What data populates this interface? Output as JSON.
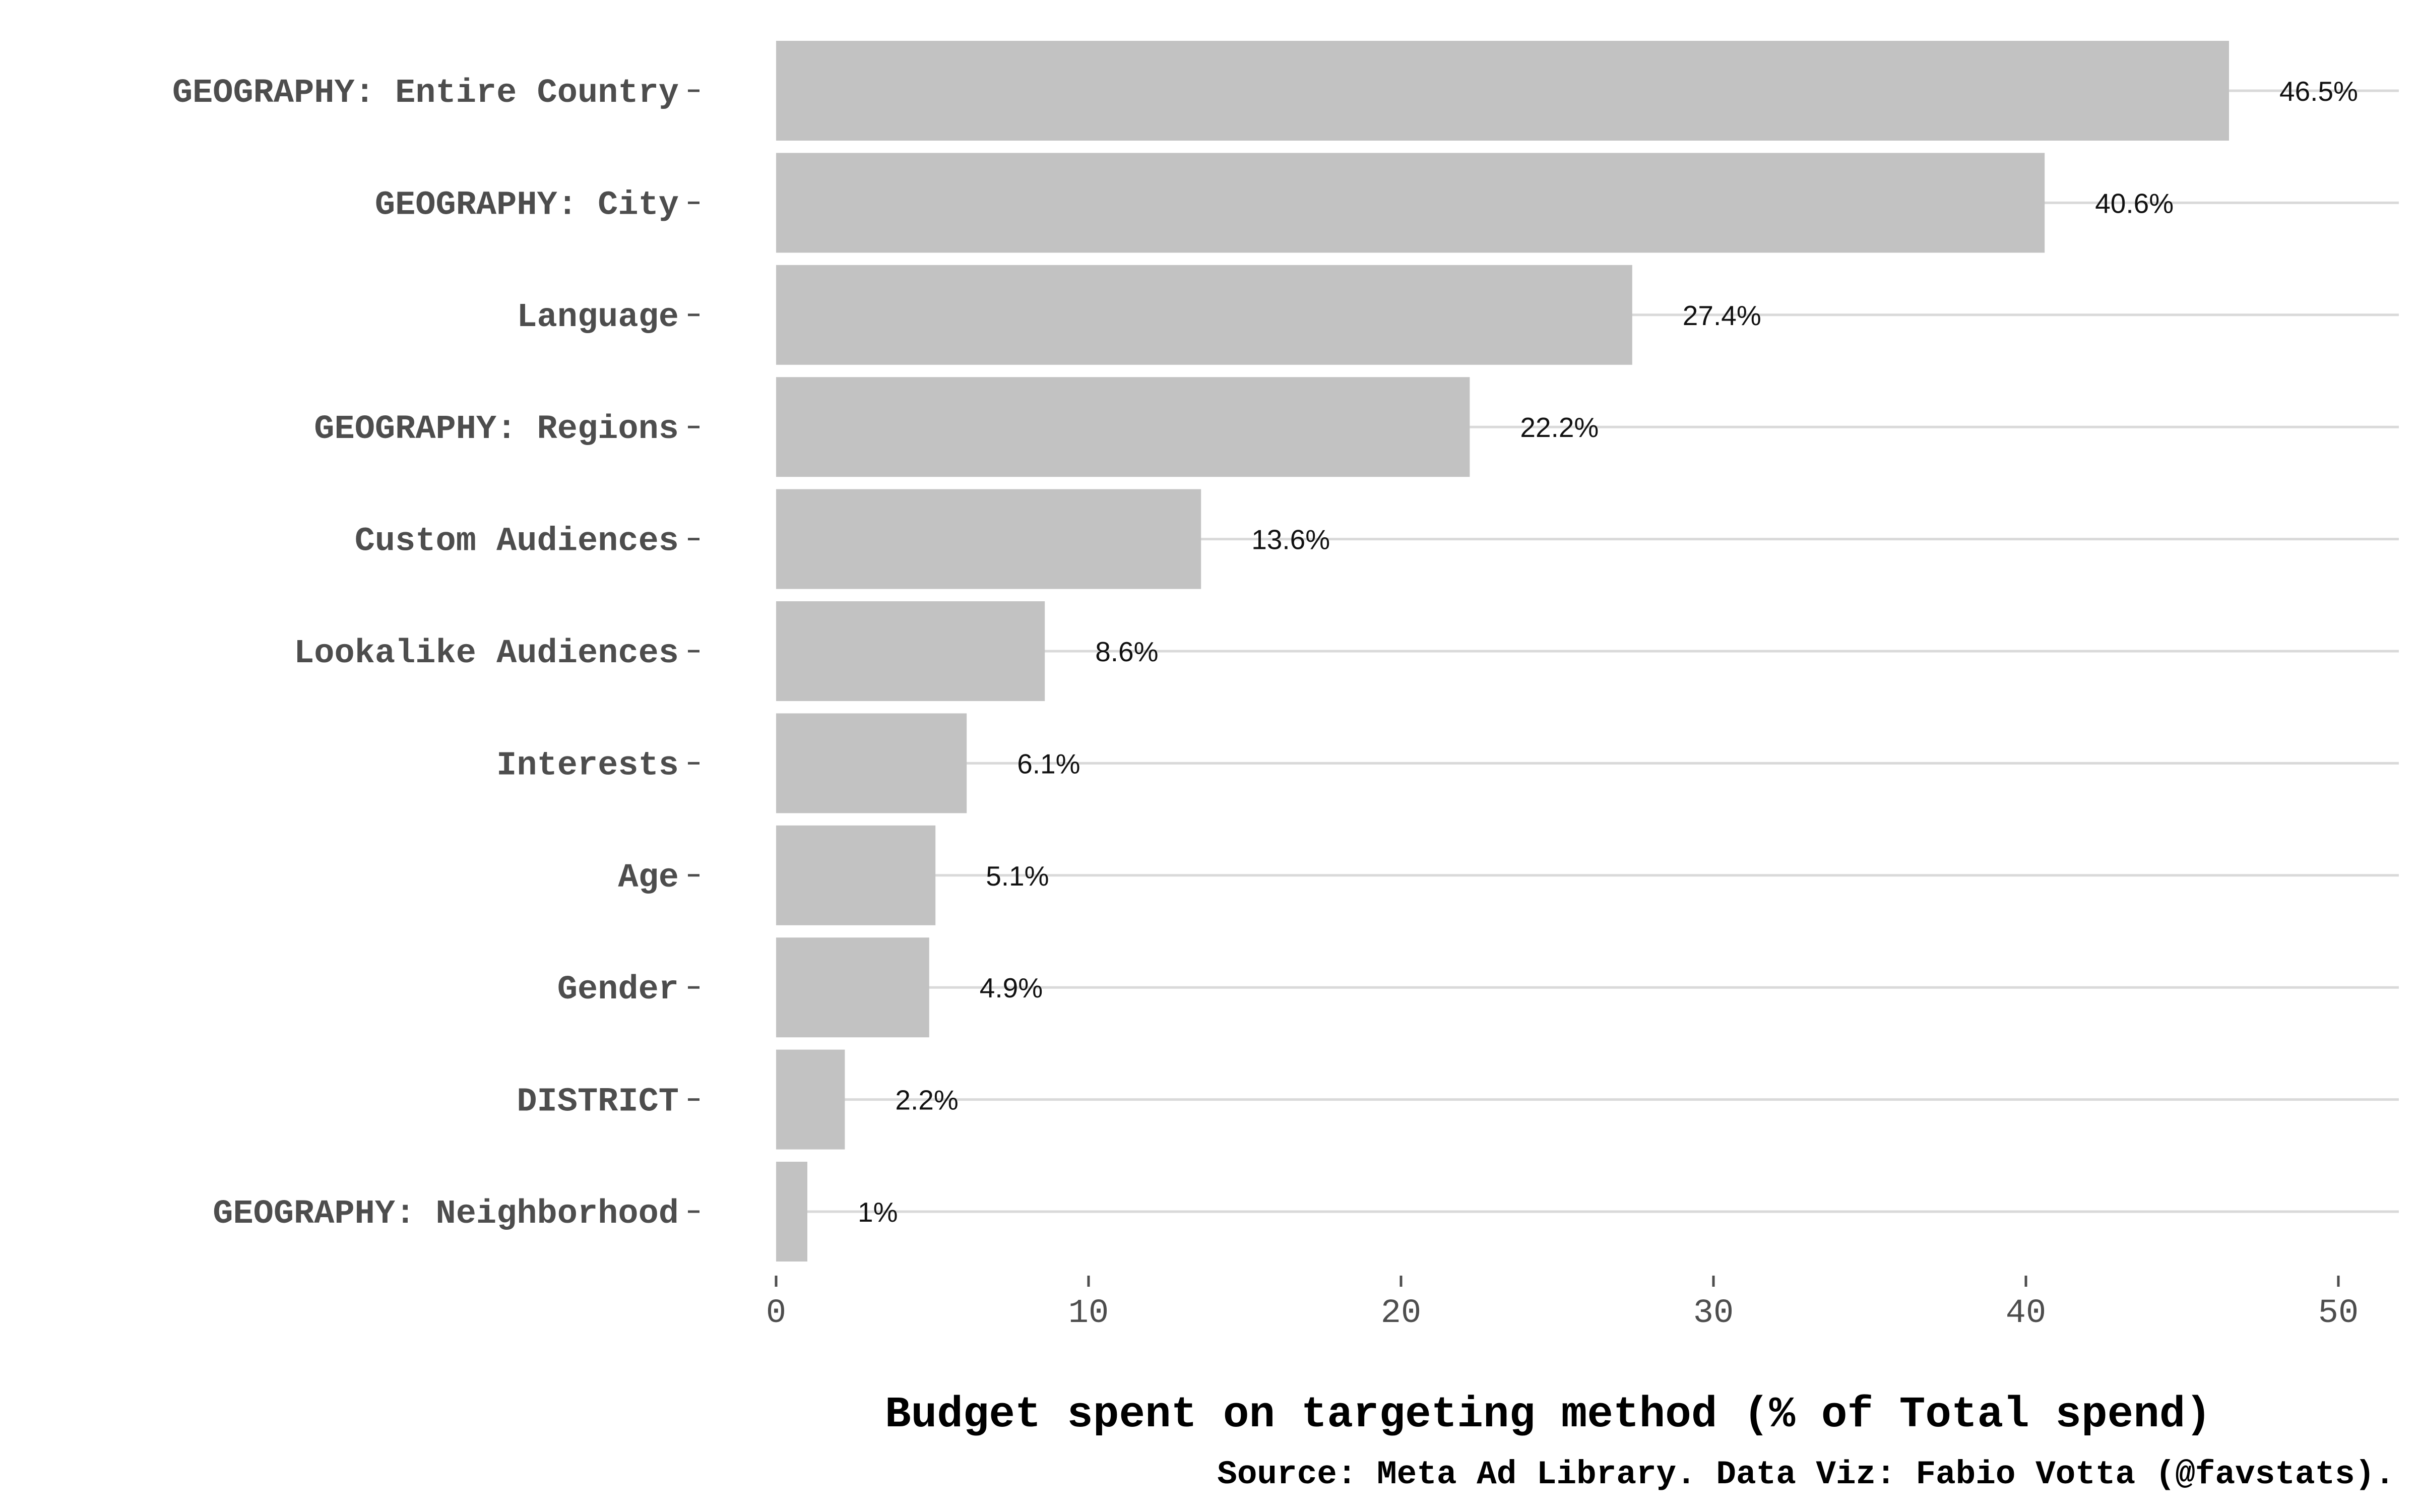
{
  "chart_data": {
    "type": "bar",
    "orientation": "horizontal",
    "categories": [
      "GEOGRAPHY: Entire Country",
      "GEOGRAPHY: City",
      "Language",
      "GEOGRAPHY: Regions",
      "Custom Audiences",
      "Lookalike Audiences",
      "Interests",
      "Age",
      "Gender",
      "DISTRICT",
      "GEOGRAPHY: Neighborhood"
    ],
    "values": [
      46.5,
      40.6,
      27.4,
      22.2,
      13.6,
      8.6,
      6.1,
      5.1,
      4.9,
      2.2,
      1
    ],
    "value_labels": [
      "46.5%",
      "40.6%",
      "27.4%",
      "22.2%",
      "13.6%",
      "8.6%",
      "6.1%",
      "5.1%",
      "4.9%",
      "2.2%",
      "1%"
    ],
    "xticks": [
      0,
      10,
      20,
      30,
      40,
      50
    ],
    "xlim": [
      0,
      51.9
    ],
    "xlabel": "Budget spent on targeting method (% of Total spend)",
    "caption": "Source: Meta Ad Library. Data Viz: Fabio Votta (@favstats).",
    "grid": "horizontal major lines only",
    "colors": {
      "bar": "#c2c2c2",
      "grid": "#d9d9d9",
      "tick": "#4d4d4d",
      "background": "#ffffff"
    }
  }
}
